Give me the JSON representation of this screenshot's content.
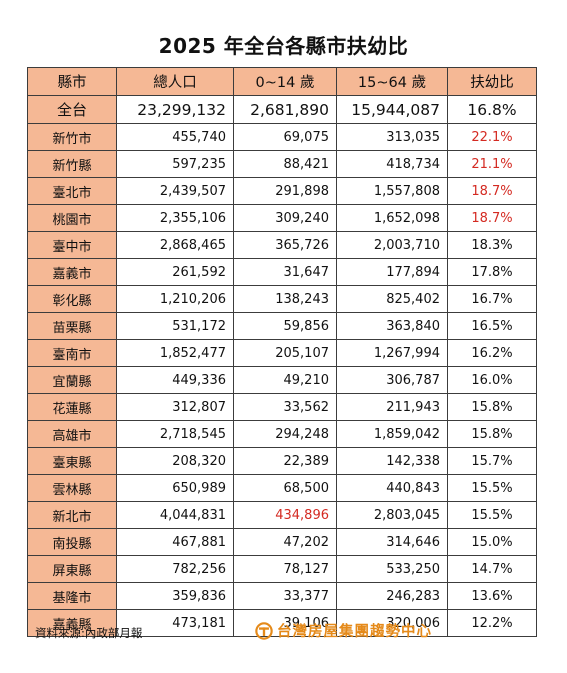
{
  "title": "2025 年全台各縣市扶幼比",
  "columns": [
    "縣市",
    "總人口",
    "0~14 歲",
    "15~64 歲",
    "扶幼比"
  ],
  "total": {
    "county": "全台",
    "pop": "23,299,132",
    "age0_14": "2,681,890",
    "age15_64": "15,944,087",
    "ratio": "16.8%"
  },
  "rows": [
    {
      "county": "新竹市",
      "pop": "455,740",
      "age0_14": "69,075",
      "age15_64": "313,035",
      "ratio": "22.1%",
      "ratio_red": true,
      "age0_14_red": false
    },
    {
      "county": "新竹縣",
      "pop": "597,235",
      "age0_14": "88,421",
      "age15_64": "418,734",
      "ratio": "21.1%",
      "ratio_red": true,
      "age0_14_red": false
    },
    {
      "county": "臺北市",
      "pop": "2,439,507",
      "age0_14": "291,898",
      "age15_64": "1,557,808",
      "ratio": "18.7%",
      "ratio_red": true,
      "age0_14_red": false
    },
    {
      "county": "桃園市",
      "pop": "2,355,106",
      "age0_14": "309,240",
      "age15_64": "1,652,098",
      "ratio": "18.7%",
      "ratio_red": true,
      "age0_14_red": false
    },
    {
      "county": "臺中市",
      "pop": "2,868,465",
      "age0_14": "365,726",
      "age15_64": "2,003,710",
      "ratio": "18.3%",
      "ratio_red": false,
      "age0_14_red": false
    },
    {
      "county": "嘉義市",
      "pop": "261,592",
      "age0_14": "31,647",
      "age15_64": "177,894",
      "ratio": "17.8%",
      "ratio_red": false,
      "age0_14_red": false
    },
    {
      "county": "彰化縣",
      "pop": "1,210,206",
      "age0_14": "138,243",
      "age15_64": "825,402",
      "ratio": "16.7%",
      "ratio_red": false,
      "age0_14_red": false
    },
    {
      "county": "苗栗縣",
      "pop": "531,172",
      "age0_14": "59,856",
      "age15_64": "363,840",
      "ratio": "16.5%",
      "ratio_red": false,
      "age0_14_red": false
    },
    {
      "county": "臺南市",
      "pop": "1,852,477",
      "age0_14": "205,107",
      "age15_64": "1,267,994",
      "ratio": "16.2%",
      "ratio_red": false,
      "age0_14_red": false
    },
    {
      "county": "宜蘭縣",
      "pop": "449,336",
      "age0_14": "49,210",
      "age15_64": "306,787",
      "ratio": "16.0%",
      "ratio_red": false,
      "age0_14_red": false
    },
    {
      "county": "花蓮縣",
      "pop": "312,807",
      "age0_14": "33,562",
      "age15_64": "211,943",
      "ratio": "15.8%",
      "ratio_red": false,
      "age0_14_red": false
    },
    {
      "county": "高雄市",
      "pop": "2,718,545",
      "age0_14": "294,248",
      "age15_64": "1,859,042",
      "ratio": "15.8%",
      "ratio_red": false,
      "age0_14_red": false
    },
    {
      "county": "臺東縣",
      "pop": "208,320",
      "age0_14": "22,389",
      "age15_64": "142,338",
      "ratio": "15.7%",
      "ratio_red": false,
      "age0_14_red": false
    },
    {
      "county": "雲林縣",
      "pop": "650,989",
      "age0_14": "68,500",
      "age15_64": "440,843",
      "ratio": "15.5%",
      "ratio_red": false,
      "age0_14_red": false
    },
    {
      "county": "新北市",
      "pop": "4,044,831",
      "age0_14": "434,896",
      "age15_64": "2,803,045",
      "ratio": "15.5%",
      "ratio_red": false,
      "age0_14_red": true
    },
    {
      "county": "南投縣",
      "pop": "467,881",
      "age0_14": "47,202",
      "age15_64": "314,646",
      "ratio": "15.0%",
      "ratio_red": false,
      "age0_14_red": false
    },
    {
      "county": "屏東縣",
      "pop": "782,256",
      "age0_14": "78,127",
      "age15_64": "533,250",
      "ratio": "14.7%",
      "ratio_red": false,
      "age0_14_red": false
    },
    {
      "county": "基隆市",
      "pop": "359,836",
      "age0_14": "33,377",
      "age15_64": "246,283",
      "ratio": "13.6%",
      "ratio_red": false,
      "age0_14_red": false
    },
    {
      "county": "嘉義縣",
      "pop": "473,181",
      "age0_14": "39,106",
      "age15_64": "320,006",
      "ratio": "12.2%",
      "ratio_red": false,
      "age0_14_red": false
    }
  ],
  "source": "資料來源:內政部月報",
  "brand": "台灣房屋集團趨勢中心",
  "colors": {
    "header_bg": "#f5b895",
    "highlight": "#d42a22",
    "brand": "#e58a1a"
  }
}
